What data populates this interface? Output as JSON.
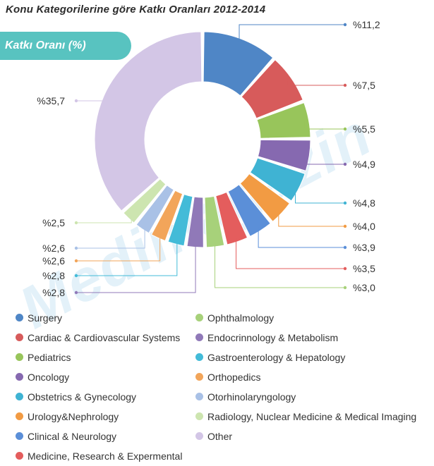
{
  "title": "Konu Kategorilerine göre Katkı Oranları  2012-2014",
  "badge": "Katkı Oranı (%)",
  "watermark": "Medimagazin",
  "chart_data": {
    "type": "pie",
    "donut": true,
    "title": "Konu Kategorilerine göre Katkı Oranları  2012-2014",
    "label_prefix": "%",
    "decimal_separator": ",",
    "categories": [
      "Surgery",
      "Cardiac & Cardiovascular Systems",
      "Pediatrics",
      "Oncology",
      "Obstetrics & Gynecology",
      "Urology&Nephrology",
      "Clinical & Neurology",
      "Medicine, Research & Expermental",
      "Ophthalmology",
      "Endocrinnology & Metabolism",
      "Gastroenterology & Hepatology",
      "Orthopedics",
      "Otorhinolaryngology",
      "Radiology, Nuclear Medicine & Medical Imaging",
      "Other"
    ],
    "values": [
      11.2,
      7.5,
      5.5,
      4.9,
      4.8,
      4.0,
      3.9,
      3.5,
      3.0,
      2.8,
      2.8,
      2.6,
      2.6,
      2.5,
      35.7
    ],
    "labels": [
      "%11,2",
      "%7,5",
      "%5,5",
      "%4,9",
      "%4,8",
      "%4,0",
      "%3,9",
      "%3,5",
      "%3,0",
      "%2,8",
      "%2,8",
      "%2,6",
      "%2,6",
      "%2,5",
      "%35,7"
    ],
    "colors": [
      "#4f86c6",
      "#d75b5b",
      "#98c55b",
      "#8669b0",
      "#3fb3d3",
      "#f29b43",
      "#5b8fd8",
      "#e45d5d",
      "#a7d17a",
      "#9079b8",
      "#43bbd8",
      "#f2a55a",
      "#a9c1e6",
      "#cde5b0",
      "#d3c6e6"
    ],
    "legend_placement": "bottom"
  },
  "legend": [
    {
      "label": "Surgery",
      "color": "#4f86c6"
    },
    {
      "label": "Cardiac & Cardiovascular Systems",
      "color": "#d75b5b"
    },
    {
      "label": "Pediatrics",
      "color": "#98c55b"
    },
    {
      "label": "Oncology",
      "color": "#8669b0"
    },
    {
      "label": "Obstetrics & Gynecology",
      "color": "#3fb3d3"
    },
    {
      "label": "Urology&Nephrology",
      "color": "#f29b43"
    },
    {
      "label": "Clinical & Neurology",
      "color": "#5b8fd8"
    },
    {
      "label": "Medicine, Research & Expermental",
      "color": "#e45d5d"
    },
    {
      "label": "Ophthalmology",
      "color": "#a7d17a"
    },
    {
      "label": "Endocrinnology & Metabolism",
      "color": "#9079b8"
    },
    {
      "label": "Gastroenterology & Hepatology",
      "color": "#43bbd8"
    },
    {
      "label": "Orthopedics",
      "color": "#f2a55a"
    },
    {
      "label": "Otorhinolaryngology",
      "color": "#a9c1e6"
    },
    {
      "label": "Radiology, Nuclear Medicine & Medical Imaging",
      "color": "#cde5b0"
    },
    {
      "label": "Other",
      "color": "#d3c6e6"
    }
  ]
}
